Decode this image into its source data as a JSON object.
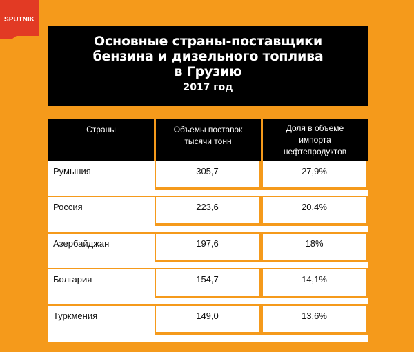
{
  "brand": {
    "logo_text": "SPUTNIK",
    "logo_color": "#E23A24"
  },
  "colors": {
    "background": "#F59A1B",
    "header_bg": "#000000",
    "text_on_dark": "#FFFFFF"
  },
  "chart_data": {
    "type": "table",
    "title_lines": [
      "Основные страны-поставщики",
      "бензина и дизельного топлива",
      "в Грузию"
    ],
    "subtitle": "2017 год",
    "columns": [
      "Страны",
      "Объемы поставок\nтысячи тонн",
      "Доля в объеме\nимпорта\nнефтепродуктов"
    ],
    "rows": [
      {
        "country": "Румыния",
        "volume": "305,7",
        "share": "27,9%"
      },
      {
        "country": "Россия",
        "volume": "223,6",
        "share": "20,4%"
      },
      {
        "country": "Азербайджан",
        "volume": "197,6",
        "share": "18%"
      },
      {
        "country": "Болгария",
        "volume": "154,7",
        "share": "14,1%"
      },
      {
        "country": "Туркмения",
        "volume": "149,0",
        "share": "13,6%"
      }
    ]
  }
}
